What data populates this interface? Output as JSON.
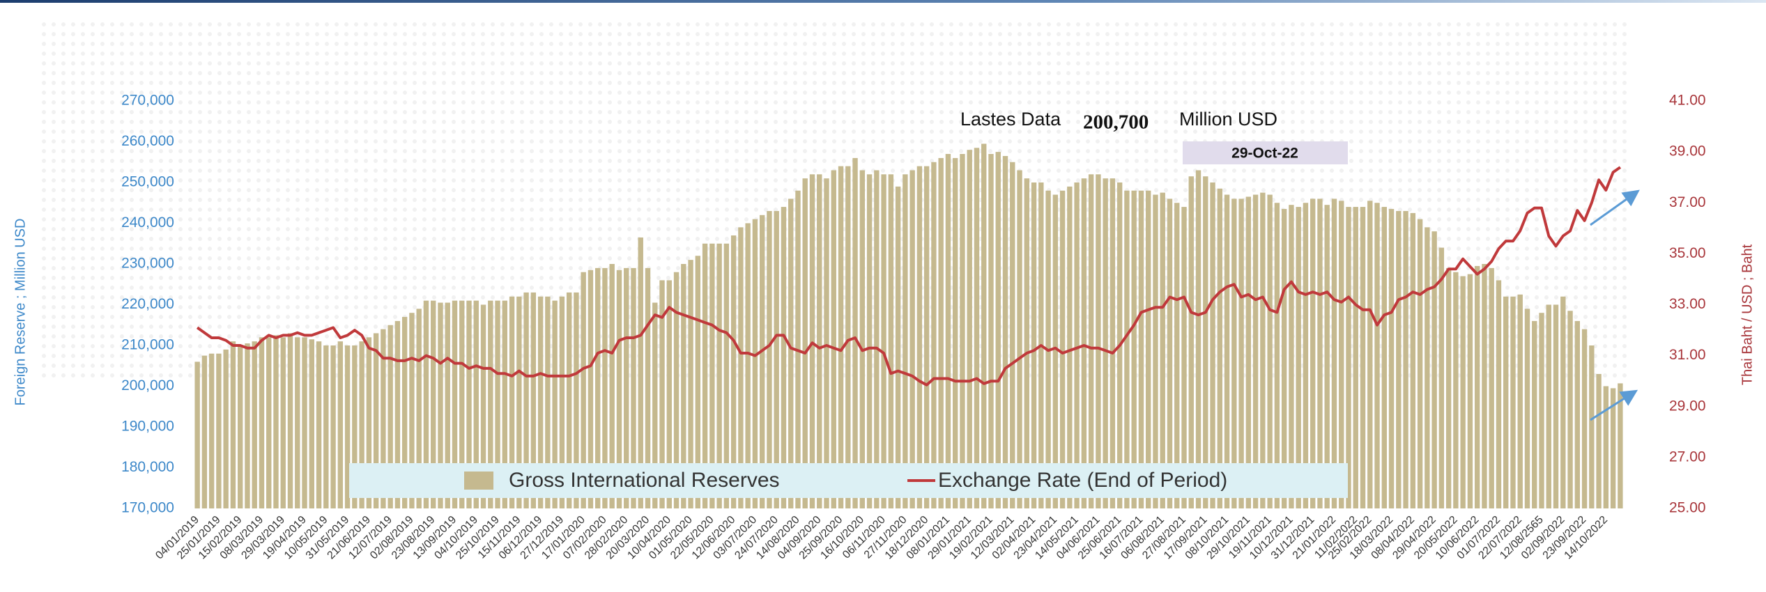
{
  "chart_data": {
    "type": "bar",
    "latest": {
      "label": "Lastes Data",
      "value": "200,700",
      "unit": "Million USD",
      "date": "29-Oct-22"
    },
    "ylabel": "Foreign Reserve ; Million USD",
    "y2label": "Thai Baht / USD ; Baht",
    "ylim": [
      170000,
      270000
    ],
    "yticks": [
      {
        "value": 170000,
        "label": "170,000"
      },
      {
        "value": 180000,
        "label": "180,000"
      },
      {
        "value": 190000,
        "label": "190,000"
      },
      {
        "value": 200000,
        "label": "200,000"
      },
      {
        "value": 210000,
        "label": "210,000"
      },
      {
        "value": 220000,
        "label": "220,000"
      },
      {
        "value": 230000,
        "label": "230,000"
      },
      {
        "value": 240000,
        "label": "240,000"
      },
      {
        "value": 250000,
        "label": "250,000"
      },
      {
        "value": 260000,
        "label": "260,000"
      },
      {
        "value": 270000,
        "label": "270,000"
      }
    ],
    "y2lim": [
      25,
      41
    ],
    "y2ticks": [
      {
        "value": 25,
        "label": "25.00"
      },
      {
        "value": 27,
        "label": "27.00"
      },
      {
        "value": 29,
        "label": "29.00"
      },
      {
        "value": 31,
        "label": "31.00"
      },
      {
        "value": 33,
        "label": "33.00"
      },
      {
        "value": 35,
        "label": "35.00"
      },
      {
        "value": 37,
        "label": "37.00"
      },
      {
        "value": 39,
        "label": "39.00"
      },
      {
        "value": 41,
        "label": "41.00"
      }
    ],
    "categories": [
      "04/01/2019",
      null,
      null,
      "25/01/2019",
      null,
      null,
      "15/02/2019",
      null,
      null,
      "08/03/2019",
      null,
      null,
      "29/03/2019",
      null,
      null,
      "19/04/2019",
      null,
      null,
      "10/05/2019",
      null,
      null,
      "31/05/2019",
      null,
      null,
      "21/06/2019",
      null,
      null,
      "12/07/2019",
      null,
      null,
      "02/08/2019",
      null,
      null,
      "23/08/2019",
      null,
      null,
      "13/09/2019",
      null,
      null,
      "04/10/2019",
      null,
      null,
      "25/10/2019",
      null,
      null,
      "15/11/2019",
      null,
      null,
      "06/12/2019",
      null,
      null,
      "27/12/2019",
      null,
      null,
      "17/01/2020",
      null,
      null,
      "07/02/2020",
      null,
      null,
      "28/02/2020",
      null,
      null,
      "20/03/2020",
      null,
      null,
      "10/04/2020",
      null,
      null,
      "01/05/2020",
      null,
      null,
      "22/05/2020",
      null,
      null,
      "12/06/2020",
      null,
      null,
      "03/07/2020",
      null,
      null,
      "24/07/2020",
      null,
      null,
      "14/08/2020",
      null,
      null,
      "04/09/2020",
      null,
      null,
      "25/09/2020",
      null,
      null,
      "16/10/2020",
      null,
      null,
      "06/11/2020",
      null,
      null,
      "27/11/2020",
      null,
      null,
      "18/12/2020",
      null,
      null,
      "08/01/2021",
      null,
      null,
      "29/01/2021",
      null,
      null,
      "19/02/2021",
      null,
      null,
      "12/03/2021",
      null,
      null,
      "02/04/2021",
      null,
      null,
      "23/04/2021",
      null,
      null,
      "14/05/2021",
      null,
      null,
      "04/06/2021",
      null,
      null,
      "25/06/2021",
      null,
      null,
      "16/07/2021",
      null,
      null,
      "06/08/2021",
      null,
      null,
      "27/08/2021",
      null,
      null,
      "17/09/2021",
      null,
      null,
      "08/10/2021",
      null,
      null,
      "29/10/2021",
      null,
      null,
      "19/11/2021",
      null,
      null,
      "10/12/2021",
      null,
      null,
      "31/12/2021",
      null,
      null,
      "21/01/2022",
      null,
      null,
      "11/02/2022",
      null,
      "25/02/2022",
      null,
      null,
      "18/03/2022",
      null,
      null,
      "08/04/2022",
      null,
      null,
      "29/04/2022",
      null,
      null,
      "20/05/2022",
      null,
      null,
      "10/06/2022",
      null,
      null,
      "01/07/2022",
      null,
      null,
      "22/07/2022",
      null,
      null,
      "12/08/2565",
      null,
      null,
      "02/09/2022",
      null,
      null,
      "23/09/2022",
      null,
      null,
      "14/10/2022",
      null,
      null
    ],
    "series": [
      {
        "name": "Gross International Reserves",
        "type": "bar",
        "color": "#c5b98f",
        "values": [
          206000,
          207500,
          208000,
          208000,
          209000,
          211000,
          210000,
          210500,
          211000,
          212000,
          212000,
          212500,
          212000,
          213000,
          212000,
          212000,
          211500,
          211000,
          210000,
          210000,
          211000,
          210000,
          210000,
          211000,
          212000,
          213000,
          214000,
          215000,
          216000,
          217000,
          218000,
          219000,
          221000,
          221000,
          220500,
          220500,
          221000,
          221000,
          221000,
          221000,
          220000,
          221000,
          221000,
          221000,
          222000,
          222000,
          223000,
          223000,
          222000,
          222000,
          221000,
          222000,
          223000,
          223000,
          228000,
          228500,
          229000,
          229000,
          230000,
          228500,
          229000,
          229000,
          236500,
          229000,
          220500,
          226000,
          226000,
          228000,
          230000,
          231000,
          232000,
          235000,
          235000,
          235000,
          235000,
          237000,
          239000,
          240000,
          241000,
          242000,
          243000,
          243000,
          244000,
          246000,
          248000,
          251000,
          252000,
          252000,
          251000,
          253000,
          254000,
          254000,
          256000,
          253000,
          252000,
          253000,
          252000,
          252000,
          249000,
          252000,
          253000,
          254000,
          254000,
          255000,
          256000,
          257000,
          256000,
          257000,
          258000,
          258500,
          259500,
          257000,
          257500,
          256500,
          255000,
          253000,
          251000,
          250000,
          250000,
          248000,
          247000,
          248000,
          249000,
          250000,
          251000,
          252000,
          252000,
          251000,
          251000,
          250000,
          248000,
          248000,
          248000,
          248000,
          247000,
          247500,
          246000,
          245000,
          244000,
          251500,
          253000,
          251500,
          250000,
          248500,
          247000,
          246000,
          246000,
          246500,
          247000,
          247500,
          247000,
          245000,
          243500,
          244500,
          244000,
          245000,
          246000,
          246000,
          244500,
          246000,
          245500,
          244000,
          244000,
          244000,
          245500,
          245000,
          244000,
          243500,
          243000,
          243000,
          242500,
          241000,
          239000,
          238000,
          234000,
          229000,
          228000,
          227000,
          227500,
          229500,
          230000,
          229000,
          226000,
          222000,
          222000,
          222500,
          219000,
          216000,
          218000,
          220000,
          220000,
          222000,
          218500,
          216000,
          214000,
          210000,
          203000,
          200000,
          199500,
          200700
        ]
      },
      {
        "name": "Exchange Rate (End of Period)",
        "type": "line",
        "axis": "y2",
        "color": "#c0393b",
        "values": [
          32.1,
          31.9,
          31.7,
          31.7,
          31.6,
          31.4,
          31.4,
          31.3,
          31.3,
          31.6,
          31.8,
          31.7,
          31.8,
          31.8,
          31.9,
          31.8,
          31.8,
          31.9,
          32.0,
          32.1,
          31.7,
          31.8,
          32.0,
          31.8,
          31.3,
          31.2,
          30.9,
          30.9,
          30.8,
          30.8,
          30.9,
          30.8,
          31.0,
          30.9,
          30.7,
          30.9,
          30.7,
          30.7,
          30.5,
          30.6,
          30.5,
          30.5,
          30.3,
          30.3,
          30.2,
          30.4,
          30.2,
          30.2,
          30.3,
          30.2,
          30.2,
          30.2,
          30.2,
          30.3,
          30.5,
          30.6,
          31.1,
          31.2,
          31.1,
          31.6,
          31.7,
          31.7,
          31.8,
          32.2,
          32.6,
          32.5,
          32.9,
          32.7,
          32.6,
          32.5,
          32.4,
          32.3,
          32.2,
          32.0,
          31.9,
          31.6,
          31.1,
          31.1,
          31.0,
          31.2,
          31.4,
          31.8,
          31.8,
          31.3,
          31.2,
          31.1,
          31.5,
          31.3,
          31.4,
          31.3,
          31.2,
          31.6,
          31.7,
          31.2,
          31.3,
          31.3,
          31.1,
          30.3,
          30.4,
          30.3,
          30.2,
          30.0,
          29.85,
          30.1,
          30.1,
          30.1,
          30.0,
          30.0,
          30.0,
          30.1,
          29.9,
          30.0,
          30.0,
          30.5,
          30.7,
          30.9,
          31.1,
          31.2,
          31.4,
          31.2,
          31.3,
          31.1,
          31.2,
          31.3,
          31.4,
          31.3,
          31.3,
          31.2,
          31.1,
          31.4,
          31.8,
          32.2,
          32.7,
          32.8,
          32.9,
          32.9,
          33.3,
          33.2,
          33.3,
          32.7,
          32.6,
          32.7,
          33.2,
          33.5,
          33.7,
          33.8,
          33.3,
          33.4,
          33.2,
          33.3,
          32.8,
          32.7,
          33.6,
          33.9,
          33.5,
          33.4,
          33.5,
          33.4,
          33.5,
          33.2,
          33.1,
          33.3,
          33.0,
          32.8,
          32.8,
          32.2,
          32.6,
          32.7,
          33.2,
          33.3,
          33.5,
          33.4,
          33.6,
          33.7,
          34.0,
          34.4,
          34.4,
          34.8,
          34.5,
          34.2,
          34.4,
          34.7,
          35.2,
          35.5,
          35.5,
          35.9,
          36.6,
          36.8,
          36.8,
          35.7,
          35.3,
          35.7,
          35.9,
          36.7,
          36.3,
          37.0,
          37.9,
          37.5,
          38.2,
          38.4
        ]
      }
    ]
  }
}
